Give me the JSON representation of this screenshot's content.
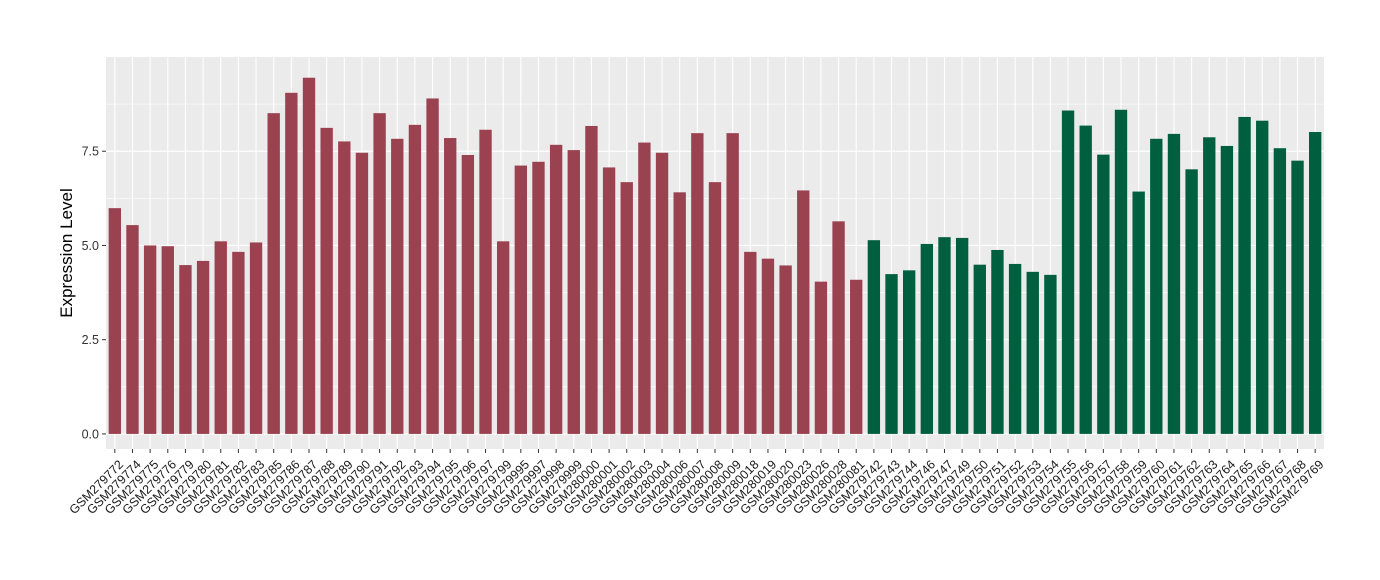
{
  "chart_data": {
    "type": "bar",
    "ylabel": "Expression Level",
    "xlabel": "",
    "ylim": [
      -0.4,
      10.0
    ],
    "yticks": [
      0.0,
      2.5,
      5.0,
      7.5
    ],
    "ytick_labels": [
      "0.0",
      "2.5",
      "5.0",
      "7.5"
    ],
    "grid": true,
    "panel_background": "#ebebeb",
    "grid_color": "#ffffff",
    "group_colors": [
      "#9b4251",
      "#005f3f"
    ],
    "categories": [
      "GSM279772",
      "GSM279774",
      "GSM279775",
      "GSM279776",
      "GSM279779",
      "GSM279780",
      "GSM279781",
      "GSM279782",
      "GSM279783",
      "GSM279785",
      "GSM279786",
      "GSM279787",
      "GSM279788",
      "GSM279789",
      "GSM279790",
      "GSM279791",
      "GSM279792",
      "GSM279793",
      "GSM279794",
      "GSM279795",
      "GSM279796",
      "GSM279797",
      "GSM279799",
      "GSM279995",
      "GSM279997",
      "GSM279998",
      "GSM279999",
      "GSM280000",
      "GSM280001",
      "GSM280002",
      "GSM280003",
      "GSM280004",
      "GSM280006",
      "GSM280007",
      "GSM280008",
      "GSM280009",
      "GSM280018",
      "GSM280019",
      "GSM280020",
      "GSM280023",
      "GSM280026",
      "GSM280028",
      "GSM280081",
      "GSM279742",
      "GSM279743",
      "GSM279744",
      "GSM279746",
      "GSM279747",
      "GSM279749",
      "GSM279750",
      "GSM279751",
      "GSM279752",
      "GSM279753",
      "GSM279754",
      "GSM279755",
      "GSM279756",
      "GSM279757",
      "GSM279758",
      "GSM279759",
      "GSM279760",
      "GSM279761",
      "GSM279762",
      "GSM279763",
      "GSM279764",
      "GSM279765",
      "GSM279766",
      "GSM279767",
      "GSM279768",
      "GSM279769"
    ],
    "values": [
      5.99,
      5.54,
      5.0,
      4.98,
      4.48,
      4.59,
      5.11,
      4.83,
      5.08,
      8.51,
      9.05,
      9.45,
      8.12,
      7.76,
      7.46,
      8.51,
      7.83,
      8.2,
      8.9,
      7.85,
      7.4,
      8.07,
      5.11,
      7.12,
      7.22,
      7.67,
      7.53,
      8.17,
      7.07,
      6.68,
      7.73,
      7.46,
      6.41,
      7.98,
      6.68,
      7.98,
      4.83,
      4.65,
      4.47,
      6.46,
      4.04,
      5.64,
      4.09,
      5.14,
      4.24,
      4.34,
      5.04,
      5.22,
      5.2,
      4.49,
      4.88,
      4.51,
      4.3,
      4.22,
      8.58,
      8.18,
      7.41,
      8.6,
      6.43,
      7.83,
      7.96,
      7.02,
      7.87,
      7.64,
      8.41,
      8.31,
      7.58,
      7.25,
      8.01
    ],
    "groups": [
      0,
      0,
      0,
      0,
      0,
      0,
      0,
      0,
      0,
      0,
      0,
      0,
      0,
      0,
      0,
      0,
      0,
      0,
      0,
      0,
      0,
      0,
      0,
      0,
      0,
      0,
      0,
      0,
      0,
      0,
      0,
      0,
      0,
      0,
      0,
      0,
      0,
      0,
      0,
      0,
      0,
      0,
      0,
      1,
      1,
      1,
      1,
      1,
      1,
      1,
      1,
      1,
      1,
      1,
      1,
      1,
      1,
      1,
      1,
      1,
      1,
      1,
      1,
      1,
      1,
      1,
      1,
      1,
      1
    ]
  }
}
